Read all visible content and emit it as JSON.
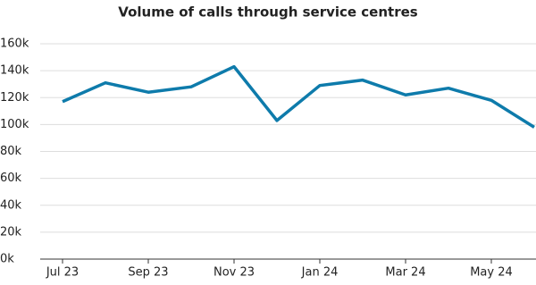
{
  "chart_data": {
    "type": "line",
    "title": "Volume of calls through service centres",
    "categories": [
      "Jul 23",
      null,
      "Sep 23",
      null,
      "Nov 23",
      null,
      "Jan 24",
      null,
      "Mar 24",
      null,
      "May 24",
      null
    ],
    "series": [
      {
        "name": null,
        "color": "#0e7bab",
        "values": [
          117000,
          131000,
          124000,
          128000,
          143000,
          103000,
          129000,
          133000,
          122000,
          127000,
          118000,
          98000
        ]
      }
    ],
    "ylim": [
      0,
      160000
    ],
    "yticks": [
      {
        "value": 0,
        "label": "0k"
      },
      {
        "value": 20000,
        "label": "20k"
      },
      {
        "value": 40000,
        "label": "40k"
      },
      {
        "value": 60000,
        "label": "60k"
      },
      {
        "value": 80000,
        "label": "80k"
      },
      {
        "value": 100000,
        "label": "100k"
      },
      {
        "value": 120000,
        "label": "120k"
      },
      {
        "value": 140000,
        "label": "140k"
      },
      {
        "value": 160000,
        "label": "160k"
      }
    ],
    "grid": true
  }
}
